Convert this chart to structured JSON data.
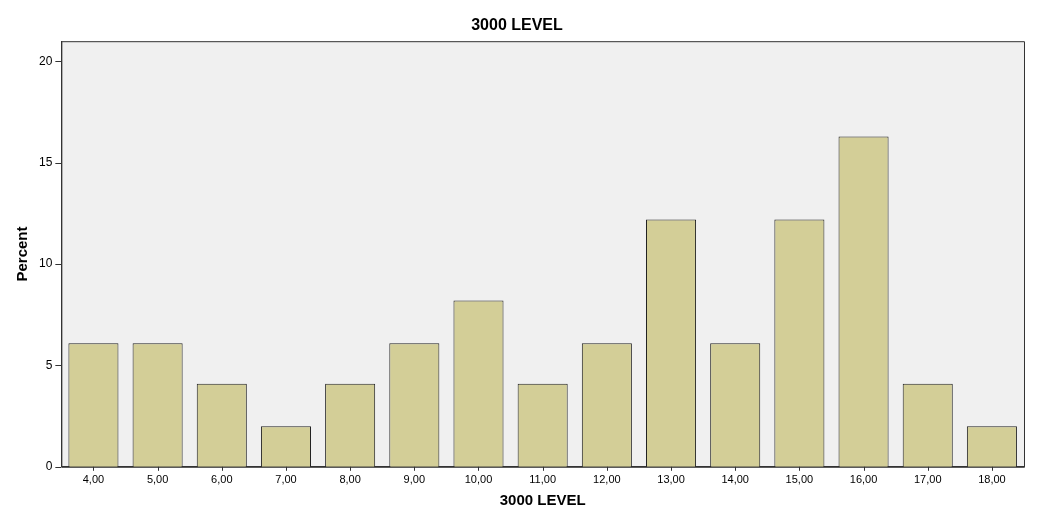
{
  "chart_data": {
    "type": "bar",
    "title": "3000 LEVEL",
    "xlabel": "3000 LEVEL",
    "ylabel": "Percent",
    "categories": [
      "4,00",
      "5,00",
      "6,00",
      "7,00",
      "8,00",
      "9,00",
      "10,00",
      "11,00",
      "12,00",
      "13,00",
      "14,00",
      "15,00",
      "16,00",
      "17,00",
      "18,00"
    ],
    "values": [
      6.1,
      6.1,
      4.1,
      2.0,
      4.1,
      6.1,
      8.2,
      4.1,
      6.1,
      12.2,
      6.1,
      12.2,
      16.3,
      4.1,
      2.0
    ],
    "color": "#d3ce97",
    "ylim": [
      0,
      21
    ],
    "yticks": [
      0,
      5,
      10,
      15,
      20
    ],
    "grid": false,
    "legend": false
  }
}
